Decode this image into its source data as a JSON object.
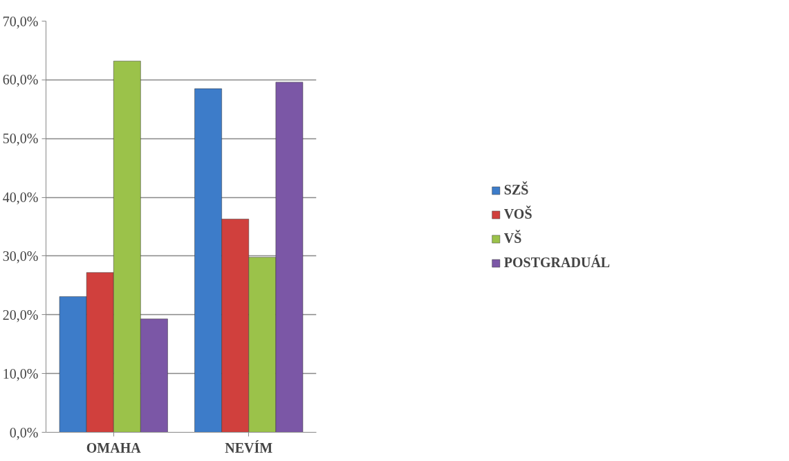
{
  "chart_data": {
    "type": "bar",
    "categories": [
      "OMAHA",
      "NEVÍM"
    ],
    "series": [
      {
        "name": "SZŠ",
        "color": "#3d7cc9",
        "values": [
          23.1,
          58.5
        ]
      },
      {
        "name": "VOŠ",
        "color": "#d0403d",
        "values": [
          27.2,
          36.3
        ]
      },
      {
        "name": "VŠ",
        "color": "#9bc24a",
        "values": [
          63.2,
          29.8
        ]
      },
      {
        "name": "POSTGRADUÁL",
        "color": "#7b57a6",
        "values": [
          19.3,
          59.6
        ]
      }
    ],
    "ylim": [
      0,
      70
    ],
    "yticks": [
      {
        "value": 0,
        "label": "0,0%"
      },
      {
        "value": 10,
        "label": "10,0%"
      },
      {
        "value": 20,
        "label": "20,0%"
      },
      {
        "value": 30,
        "label": "30,0%"
      },
      {
        "value": 40,
        "label": "40,0%"
      },
      {
        "value": 50,
        "label": "50,0%"
      },
      {
        "value": 60,
        "label": "60,0%"
      },
      {
        "value": 70,
        "label": "70,0%"
      }
    ],
    "grid": "y",
    "legend": "right"
  }
}
